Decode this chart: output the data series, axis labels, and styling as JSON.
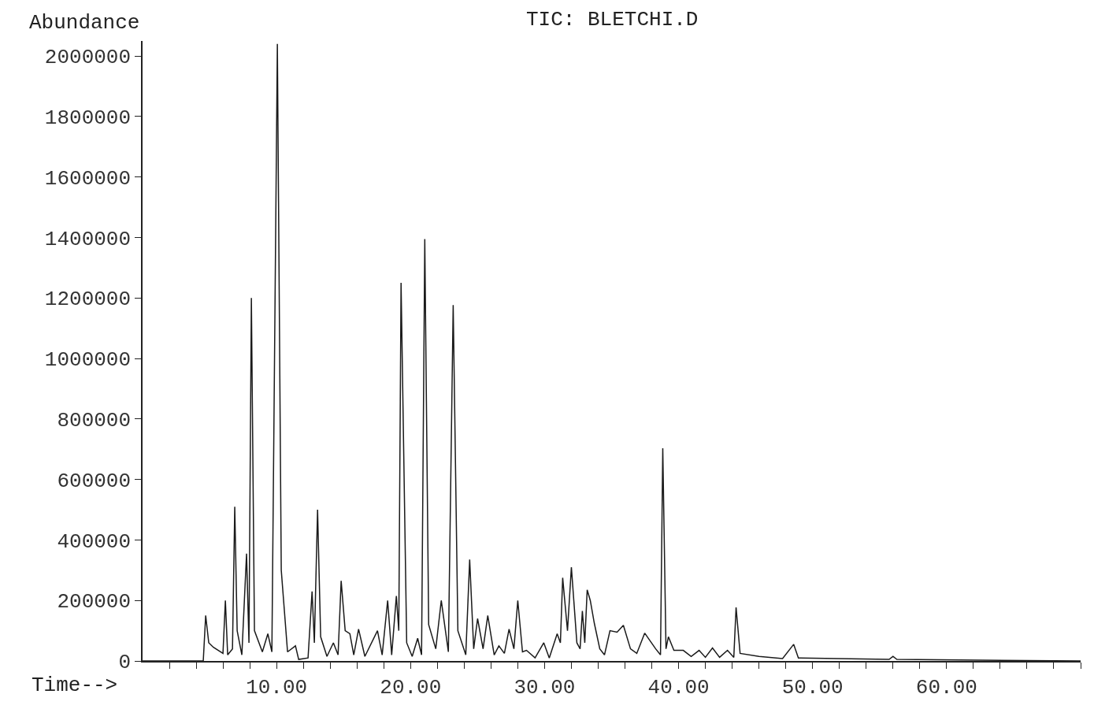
{
  "chart_data": {
    "type": "line",
    "title": "TIC: BLETCHI.D",
    "xlabel": "Time-->",
    "ylabel": "Abundance",
    "xlim": [
      0,
      70
    ],
    "ylim": [
      0,
      2050000
    ],
    "xticks": [
      {
        "value": 2,
        "label": null
      },
      {
        "value": 4,
        "label": null
      },
      {
        "value": 6,
        "label": null
      },
      {
        "value": 8,
        "label": null
      },
      {
        "value": 10,
        "label": "10.00"
      },
      {
        "value": 12,
        "label": null
      },
      {
        "value": 14,
        "label": null
      },
      {
        "value": 16,
        "label": null
      },
      {
        "value": 18,
        "label": null
      },
      {
        "value": 20,
        "label": "20.00"
      },
      {
        "value": 22,
        "label": null
      },
      {
        "value": 24,
        "label": null
      },
      {
        "value": 26,
        "label": null
      },
      {
        "value": 28,
        "label": null
      },
      {
        "value": 30,
        "label": "30.00"
      },
      {
        "value": 32,
        "label": null
      },
      {
        "value": 34,
        "label": null
      },
      {
        "value": 36,
        "label": null
      },
      {
        "value": 38,
        "label": null
      },
      {
        "value": 40,
        "label": "40.00"
      },
      {
        "value": 42,
        "label": null
      },
      {
        "value": 44,
        "label": null
      },
      {
        "value": 46,
        "label": null
      },
      {
        "value": 48,
        "label": null
      },
      {
        "value": 50,
        "label": "50.00"
      },
      {
        "value": 52,
        "label": null
      },
      {
        "value": 54,
        "label": null
      },
      {
        "value": 56,
        "label": null
      },
      {
        "value": 58,
        "label": null
      },
      {
        "value": 60,
        "label": "60.00"
      },
      {
        "value": 62,
        "label": null
      },
      {
        "value": 64,
        "label": null
      },
      {
        "value": 66,
        "label": null
      },
      {
        "value": 68,
        "label": null
      },
      {
        "value": 70,
        "label": null
      }
    ],
    "yticks": [
      0,
      200000,
      400000,
      600000,
      800000,
      1000000,
      1200000,
      1400000,
      1600000,
      1800000,
      2000000
    ],
    "marker": "none",
    "line_style": "solid",
    "series": [
      {
        "color": "#1a1a1a",
        "x": [
          0,
          4.53,
          4.71,
          4.94,
          5.29,
          6.0,
          6.18,
          6.35,
          6.71,
          6.88,
          7.06,
          7.41,
          7.76,
          7.94,
          8.12,
          8.35,
          8.94,
          9.35,
          9.65,
          10.06,
          10.35,
          10.82,
          11.41,
          11.65,
          12.35,
          12.65,
          12.82,
          13.06,
          13.29,
          13.76,
          14.24,
          14.59,
          14.82,
          15.12,
          15.47,
          15.76,
          16.12,
          16.59,
          17.53,
          17.88,
          18.29,
          18.59,
          18.94,
          19.12,
          19.29,
          19.71,
          20.12,
          20.53,
          20.82,
          21.06,
          21.35,
          21.88,
          22.29,
          22.82,
          23.18,
          23.53,
          24.12,
          24.41,
          24.71,
          25.0,
          25.41,
          25.76,
          26.24,
          26.59,
          27.0,
          27.35,
          27.71,
          28.0,
          28.35,
          28.65,
          29.29,
          29.94,
          30.35,
          30.94,
          31.18,
          31.35,
          31.71,
          32.0,
          32.41,
          32.65,
          32.82,
          33.0,
          33.18,
          33.41,
          33.71,
          34.12,
          34.47,
          34.88,
          35.41,
          35.88,
          36.41,
          36.88,
          37.47,
          38.29,
          38.65,
          38.82,
          39.06,
          39.24,
          39.65,
          40.35,
          40.94,
          41.53,
          42.0,
          42.53,
          43.06,
          43.65,
          44.12,
          44.29,
          44.59,
          46.0,
          47.76,
          48.59,
          48.94,
          51.88,
          55.71,
          56.0,
          56.29,
          70
        ],
        "values": [
          0,
          0,
          150000,
          60000,
          45000,
          25000,
          200000,
          20000,
          40000,
          510000,
          100000,
          20000,
          355000,
          60000,
          1200000,
          100000,
          30000,
          90000,
          30000,
          2040000,
          300000,
          30000,
          50000,
          5000,
          10000,
          230000,
          60000,
          500000,
          80000,
          15000,
          60000,
          20000,
          265000,
          100000,
          90000,
          20000,
          105000,
          15000,
          100000,
          20000,
          200000,
          20000,
          215000,
          100000,
          1250000,
          60000,
          15000,
          75000,
          20000,
          1395000,
          120000,
          40000,
          200000,
          30000,
          1177000,
          100000,
          20000,
          335000,
          40000,
          140000,
          40000,
          150000,
          20000,
          50000,
          25000,
          105000,
          40000,
          200000,
          30000,
          35000,
          10000,
          60000,
          10000,
          90000,
          60000,
          275000,
          100000,
          310000,
          60000,
          40000,
          165000,
          60000,
          235000,
          200000,
          125000,
          40000,
          20000,
          100000,
          95000,
          118000,
          40000,
          25000,
          92000,
          40000,
          20000,
          703000,
          40000,
          80000,
          35000,
          35000,
          15000,
          35000,
          12000,
          43000,
          12000,
          35000,
          12000,
          177000,
          25000,
          15000,
          8000,
          55000,
          10000,
          8000,
          5000,
          15000,
          5000,
          0
        ]
      }
    ]
  }
}
